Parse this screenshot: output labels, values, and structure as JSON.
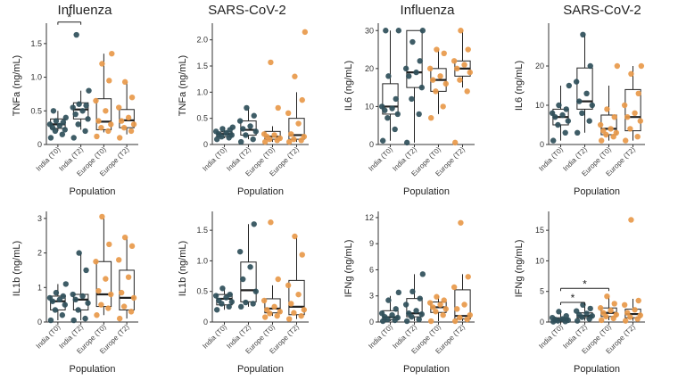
{
  "colors": {
    "india": "#2f4f5a",
    "europe": "#e8994a"
  },
  "column_titles": [
    "Influenza",
    "SARS-CoV-2",
    "Influenza",
    "SARS-CoV-2"
  ],
  "chart_data": [
    {
      "type": "box",
      "title": "Influenza",
      "xlabel": "Population",
      "ylabel": "TNFa (ng/mL)",
      "categories": [
        "India (T0)",
        "India (T2)",
        "Europe (T0)",
        "Europe (T2)"
      ],
      "ylim": [
        0,
        1.75
      ],
      "yticks": [
        0,
        0.5,
        1.0,
        1.5
      ],
      "ytick_labels": [
        "0",
        "0.5",
        "1.0",
        "1.5"
      ],
      "boxes": [
        [
          0.2,
          0.24,
          0.3,
          0.38,
          0.5
        ],
        [
          0.22,
          0.38,
          0.52,
          0.62,
          0.8
        ],
        [
          0.18,
          0.22,
          0.34,
          0.68,
          1.35
        ],
        [
          0.15,
          0.25,
          0.36,
          0.52,
          0.93
        ]
      ],
      "points": [
        [
          0.1,
          0.15,
          0.2,
          0.22,
          0.25,
          0.28,
          0.3,
          0.33,
          0.35,
          0.4,
          0.5
        ],
        [
          0.1,
          0.2,
          0.3,
          0.38,
          0.45,
          0.5,
          0.55,
          0.58,
          0.6,
          0.8,
          1.63
        ],
        [
          0.12,
          0.2,
          0.25,
          0.3,
          0.35,
          0.5,
          0.65,
          0.95,
          1.2,
          1.35
        ],
        [
          0.1,
          0.2,
          0.25,
          0.3,
          0.35,
          0.4,
          0.55,
          0.7,
          0.93
        ]
      ],
      "significance": [
        {
          "from": 0,
          "to": 1,
          "label": "*",
          "y": 1.82
        }
      ]
    },
    {
      "type": "box",
      "title": "SARS-CoV-2",
      "xlabel": "Population",
      "ylabel": "TNFa (ng/mL)",
      "categories": [
        "India (T0)",
        "India (T2)",
        "Europe (T0)",
        "Europe (T2)"
      ],
      "ylim": [
        0,
        2.25
      ],
      "yticks": [
        0,
        0.5,
        1.0,
        1.5,
        2.0
      ],
      "ytick_labels": [
        "0",
        "0.5",
        "1.0",
        "1.5",
        "2.0"
      ],
      "boxes": [
        [
          0.12,
          0.15,
          0.2,
          0.24,
          0.33
        ],
        [
          0.1,
          0.18,
          0.28,
          0.45,
          0.7
        ],
        [
          0.05,
          0.1,
          0.15,
          0.25,
          0.35
        ],
        [
          0.05,
          0.1,
          0.18,
          0.5,
          1.0
        ]
      ],
      "points": [
        [
          0.1,
          0.13,
          0.15,
          0.18,
          0.2,
          0.22,
          0.25,
          0.28,
          0.3,
          0.33
        ],
        [
          0.05,
          0.1,
          0.18,
          0.25,
          0.3,
          0.35,
          0.45,
          0.55,
          0.7
        ],
        [
          0.05,
          0.08,
          0.1,
          0.12,
          0.15,
          0.18,
          0.2,
          0.7,
          1.57
        ],
        [
          0.05,
          0.08,
          0.1,
          0.15,
          0.2,
          0.4,
          0.6,
          0.85,
          1.3,
          2.15
        ]
      ],
      "significance": []
    },
    {
      "type": "box",
      "title": "Influenza",
      "xlabel": "Population",
      "ylabel": "IL6 (ng/mL)",
      "categories": [
        "India (T0)",
        "India (T2)",
        "Europe (T0)",
        "Europe (T2)"
      ],
      "ylim": [
        0,
        31
      ],
      "yticks": [
        0,
        10,
        20,
        30
      ],
      "ytick_labels": [
        "0",
        "10",
        "20",
        "30"
      ],
      "boxes": [
        [
          1,
          8,
          10,
          16,
          30
        ],
        [
          0.5,
          15,
          19,
          30,
          30
        ],
        [
          8,
          14,
          17,
          20,
          25
        ],
        [
          15,
          18,
          20,
          22,
          30
        ]
      ],
      "points": [
        [
          1,
          4,
          7,
          8,
          9,
          9.5,
          10,
          12,
          18,
          30,
          30
        ],
        [
          0.5,
          8,
          12,
          15,
          18,
          19,
          20,
          22,
          27,
          30
        ],
        [
          7,
          10,
          14,
          16,
          17,
          18,
          20,
          24,
          25
        ],
        [
          0.5,
          14,
          17,
          19,
          20,
          21,
          22,
          25,
          30
        ]
      ],
      "significance": []
    },
    {
      "type": "box",
      "title": "SARS-CoV-2",
      "xlabel": "Population",
      "ylabel": "IL6 (ng/mL)",
      "categories": [
        "India (T0)",
        "India (T2)",
        "Europe (T0)",
        "Europe (T2)"
      ],
      "ylim": [
        0,
        30
      ],
      "yticks": [
        0,
        10,
        20
      ],
      "ytick_labels": [
        "0",
        "10",
        "20"
      ],
      "boxes": [
        [
          1,
          5,
          7,
          9,
          15
        ],
        [
          3,
          9,
          11,
          19.5,
          28
        ],
        [
          1,
          2.5,
          4,
          7.5,
          15
        ],
        [
          1,
          3.5,
          7,
          14,
          20
        ]
      ],
      "points": [
        [
          1,
          3,
          5,
          6,
          7,
          7.5,
          8,
          9,
          10,
          15
        ],
        [
          3,
          6,
          8,
          10,
          11,
          13,
          16,
          20,
          28
        ],
        [
          1,
          2,
          2.5,
          3,
          3.5,
          4,
          5,
          7,
          9,
          20
        ],
        [
          1,
          2,
          4,
          6,
          7,
          8,
          10,
          13,
          18,
          20
        ]
      ],
      "significance": []
    },
    {
      "type": "box",
      "title": "Influenza",
      "xlabel": "Population",
      "ylabel": "IL1b (ng/mL)",
      "categories": [
        "India (T0)",
        "India (T2)",
        "Europe (T0)",
        "Europe (T2)"
      ],
      "ylim": [
        0,
        3.1
      ],
      "yticks": [
        0,
        1,
        2,
        3
      ],
      "ytick_labels": [
        "0",
        "1",
        "2",
        "3"
      ],
      "boxes": [
        [
          0.05,
          0.35,
          0.6,
          0.75,
          1.1
        ],
        [
          0.05,
          0.35,
          0.65,
          0.8,
          2.0
        ],
        [
          0.2,
          0.45,
          0.8,
          1.75,
          3.0
        ],
        [
          0.1,
          0.35,
          0.7,
          1.5,
          2.45
        ]
      ],
      "points": [
        [
          0.05,
          0.2,
          0.35,
          0.5,
          0.6,
          0.65,
          0.7,
          0.75,
          0.85,
          1.1
        ],
        [
          0.05,
          0.1,
          0.35,
          0.55,
          0.65,
          0.75,
          0.8,
          1.5,
          2.0
        ],
        [
          0.2,
          0.4,
          0.5,
          0.8,
          0.9,
          1.25,
          1.75,
          2.25,
          3.05
        ],
        [
          0.1,
          0.3,
          0.45,
          0.7,
          0.85,
          1.3,
          1.8,
          2.2,
          2.45
        ]
      ],
      "significance": []
    },
    {
      "type": "box",
      "title": "SARS-CoV-2",
      "xlabel": "Population",
      "ylabel": "IL1b (ng/mL)",
      "categories": [
        "India (T0)",
        "India (T2)",
        "Europe (T0)",
        "Europe (T2)"
      ],
      "ylim": [
        0,
        1.75
      ],
      "yticks": [
        0,
        0.5,
        1.0,
        1.5
      ],
      "ytick_labels": [
        "0",
        "0.5",
        "1.0",
        "1.5"
      ],
      "boxes": [
        [
          0.2,
          0.28,
          0.38,
          0.45,
          0.55
        ],
        [
          0.25,
          0.33,
          0.52,
          0.98,
          1.6
        ],
        [
          0.1,
          0.15,
          0.22,
          0.38,
          0.6
        ],
        [
          0.05,
          0.12,
          0.25,
          0.68,
          1.4
        ]
      ],
      "points": [
        [
          0.2,
          0.25,
          0.3,
          0.33,
          0.35,
          0.4,
          0.43,
          0.45,
          0.55
        ],
        [
          0.25,
          0.3,
          0.32,
          0.5,
          0.7,
          0.9,
          1.15,
          1.6
        ],
        [
          0.08,
          0.1,
          0.14,
          0.17,
          0.2,
          0.25,
          0.35,
          0.7,
          1.63
        ],
        [
          0.05,
          0.1,
          0.15,
          0.2,
          0.3,
          0.45,
          0.6,
          1.1,
          1.4
        ]
      ],
      "significance": []
    },
    {
      "type": "box",
      "title": "Influenza",
      "xlabel": "Population",
      "ylabel": "IFNg (ng/mL)",
      "categories": [
        "India (T0)",
        "India (T2)",
        "Europe (T0)",
        "Europe (T2)"
      ],
      "ylim": [
        0,
        12.3
      ],
      "yticks": [
        0,
        3,
        6,
        9,
        12
      ],
      "ytick_labels": [
        "0",
        "3",
        "6",
        "9",
        "12"
      ],
      "boxes": [
        [
          0.1,
          0.25,
          0.55,
          1.3,
          3.0
        ],
        [
          0.1,
          0.6,
          1.0,
          2.7,
          5.5
        ],
        [
          0.1,
          1.1,
          1.7,
          2.3,
          3.0
        ],
        [
          0.1,
          0.35,
          0.7,
          3.7,
          5.5
        ]
      ],
      "points": [
        [
          0.1,
          0.2,
          0.3,
          0.5,
          0.6,
          0.8,
          1.0,
          1.5,
          2.5,
          3.4
        ],
        [
          0.1,
          0.3,
          0.6,
          0.9,
          1.0,
          1.3,
          2.0,
          2.7,
          3.5,
          5.5
        ],
        [
          0.1,
          0.8,
          1.2,
          1.5,
          1.7,
          2.0,
          2.2,
          2.5,
          2.9
        ],
        [
          0.1,
          0.3,
          0.5,
          0.8,
          1.5,
          2.0,
          4.0,
          5.2,
          11.4
        ]
      ],
      "significance": []
    },
    {
      "type": "box",
      "title": "SARS-CoV-2",
      "xlabel": "Population",
      "ylabel": "IFNg (ng/mL)",
      "categories": [
        "India (T0)",
        "India (T2)",
        "Europe (T0)",
        "Europe (T2)"
      ],
      "ylim": [
        0,
        17.5
      ],
      "yticks": [
        0,
        5,
        10,
        15
      ],
      "ytick_labels": [
        "0",
        "5",
        "10",
        "15"
      ],
      "boxes": [
        [
          0.05,
          0.2,
          0.4,
          0.7,
          1.7
        ],
        [
          0.2,
          0.7,
          1.0,
          1.5,
          2.8
        ],
        [
          0.3,
          0.9,
          1.5,
          2.3,
          4.2
        ],
        [
          0.2,
          0.7,
          1.3,
          2.1,
          3.8
        ]
      ],
      "points": [
        [
          0.05,
          0.1,
          0.2,
          0.3,
          0.4,
          0.5,
          0.7,
          1.0,
          1.7
        ],
        [
          0.2,
          0.5,
          0.8,
          1.0,
          1.2,
          1.4,
          1.8,
          2.2,
          2.8
        ],
        [
          0.3,
          0.6,
          0.9,
          1.2,
          1.5,
          1.9,
          2.3,
          3.0,
          4.2
        ],
        [
          0.2,
          0.5,
          0.8,
          1.1,
          1.5,
          2.0,
          2.8,
          3.5,
          16.7
        ]
      ],
      "significance": [
        {
          "from": 0,
          "to": 1,
          "label": "*",
          "y": 3.2
        },
        {
          "from": 0,
          "to": 2,
          "label": "*",
          "y": 5.5
        }
      ]
    }
  ]
}
